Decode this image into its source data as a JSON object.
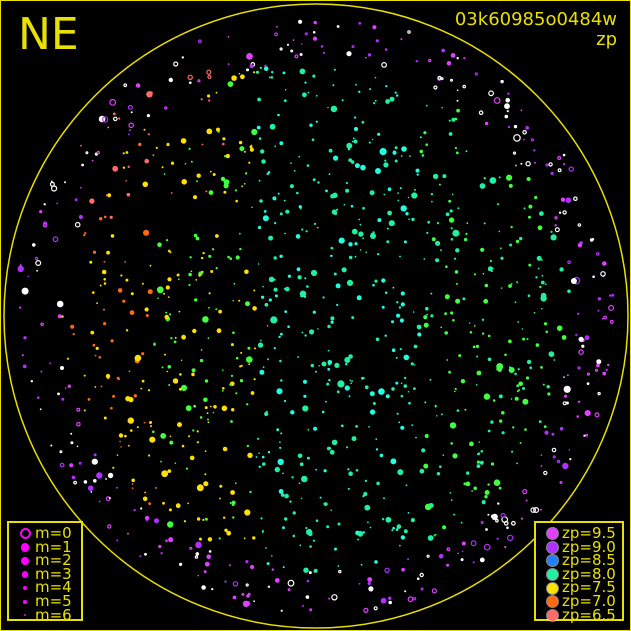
{
  "header": {
    "direction": "NE",
    "image_id": "03k60985o0484w",
    "mode": "zp"
  },
  "chart_data": {
    "type": "scatter",
    "title": "",
    "legend_magnitude": {
      "placement": "bottom-left",
      "entries": [
        "m=0",
        "m=1",
        "m=2",
        "m=3",
        "m=4",
        "m=5",
        "m=6"
      ]
    },
    "legend_zp": {
      "placement": "bottom-right",
      "entries": [
        {
          "label": "zp=9.5",
          "color": "#e040ff"
        },
        {
          "label": "zp=9.0",
          "color": "#b030ff"
        },
        {
          "label": "zp=8.5",
          "color": "#2080ff"
        },
        {
          "label": "zp=8.0",
          "color": "#20f0a0"
        },
        {
          "label": "zp=7.5",
          "color": "#ffe000"
        },
        {
          "label": "zp=7.0",
          "color": "#ff6a10"
        },
        {
          "label": "zp=6.5",
          "color": "#ff6a6a"
        }
      ]
    },
    "horizon_color": "#e8e000"
  }
}
